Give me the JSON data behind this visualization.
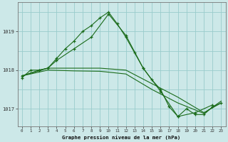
{
  "title": "Graphe pression niveau de la mer (hPa)",
  "background_color": "#cce8e8",
  "grid_color": "#99cccc",
  "line_color": "#1a6b1a",
  "ylabel_values": [
    1017,
    1018,
    1019
  ],
  "xlim": [
    -0.5,
    23.5
  ],
  "ylim": [
    1016.55,
    1019.75
  ],
  "lines": [
    {
      "x": [
        0,
        1,
        2,
        3,
        4,
        5,
        6,
        7,
        8,
        9,
        10,
        11,
        12,
        13,
        14,
        15,
        16,
        17,
        18,
        19,
        20,
        21,
        22,
        23
      ],
      "y": [
        1017.8,
        1018.0,
        1018.0,
        1018.05,
        1018.3,
        1018.55,
        1018.75,
        1019.0,
        1019.15,
        1019.35,
        1019.5,
        1019.2,
        1018.85,
        1018.45,
        1018.05,
        1017.75,
        1017.5,
        1017.05,
        1016.8,
        1017.0,
        1016.85,
        1016.85,
        1017.05,
        1017.15
      ],
      "marker": true
    },
    {
      "x": [
        0,
        2,
        3,
        4,
        6,
        8,
        10,
        12,
        14,
        16,
        18,
        20,
        22
      ],
      "y": [
        1017.85,
        1018.0,
        1018.05,
        1018.25,
        1018.55,
        1018.85,
        1019.45,
        1018.9,
        1018.05,
        1017.45,
        1016.8,
        1016.9,
        1017.1
      ],
      "marker": true
    },
    {
      "x": [
        0,
        3,
        6,
        9,
        12,
        15,
        18,
        21,
        23
      ],
      "y": [
        1017.85,
        1018.05,
        1018.05,
        1018.05,
        1018.0,
        1017.65,
        1017.3,
        1016.9,
        1017.15
      ],
      "marker": false
    },
    {
      "x": [
        0,
        3,
        6,
        9,
        12,
        15,
        18,
        21,
        23
      ],
      "y": [
        1017.85,
        1018.0,
        1017.98,
        1017.97,
        1017.9,
        1017.5,
        1017.15,
        1016.88,
        1017.2
      ],
      "marker": false
    }
  ],
  "xtick_labels": [
    "0",
    "1",
    "2",
    "3",
    "4",
    "5",
    "6",
    "7",
    "8",
    "9",
    "10",
    "11",
    "12",
    "13",
    "14",
    "15",
    "16",
    "17",
    "18",
    "19",
    "20",
    "21",
    "22",
    "23"
  ],
  "figsize": [
    3.2,
    2.0
  ],
  "dpi": 100
}
